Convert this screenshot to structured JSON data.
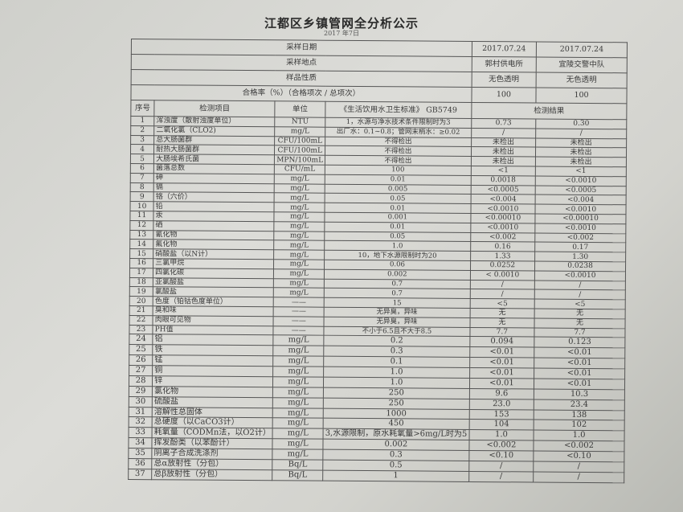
{
  "title": "江都区乡镇管网全分析公示",
  "subtitle": "2017 年7日",
  "meta": [
    {
      "label": "采样日期",
      "v1": "2017.07.24",
      "v2": "2017.07.24"
    },
    {
      "label": "采样地点",
      "v1": "郭村供电所",
      "v2": "宜陵交警中队"
    },
    {
      "label": "样品性质",
      "v1": "无色透明",
      "v2": "无色透明"
    },
    {
      "label": "合格率（%）（合格项次 / 总项次）",
      "v1": "100",
      "v2": "100"
    }
  ],
  "header": {
    "seq": "序号",
    "item": "检测项目",
    "unit": "单位",
    "standard": "《生活饮用水卫生标准》 GB5749",
    "result": "检测结果"
  },
  "rows": [
    [
      "1",
      "浑浊度（散射浊度单位）",
      "NTU",
      "1，水源与净水技术条件限制时为3",
      "0.73",
      "0.30"
    ],
    [
      "2",
      "二氧化氯（CLO2)",
      "mg/L",
      "出厂水：0.1~0.8；管网末梢水：≥0.02",
      "/",
      "/"
    ],
    [
      "3",
      "总大肠菌群",
      "CFU/100mL",
      "不得检出",
      "未检出",
      "未检出"
    ],
    [
      "4",
      "耐热大肠菌群",
      "CFU/100mL",
      "不得检出",
      "未检出",
      "未检出"
    ],
    [
      "5",
      "大肠埃希氏菌",
      "MPN/100mL",
      "不得检出",
      "未检出",
      "未检出"
    ],
    [
      "6",
      "菌落总数",
      "CFU/mL",
      "100",
      "<1",
      "<1"
    ],
    [
      "7",
      "砷",
      "mg/L",
      "0.01",
      "0.0018",
      "<0.0010"
    ],
    [
      "8",
      "镉",
      "mg/L",
      "0.005",
      "<0.0005",
      "<0.0005"
    ],
    [
      "9",
      "铬（六价）",
      "mg/L",
      "0.05",
      "<0.004",
      "<0.004"
    ],
    [
      "10",
      "铅",
      "mg/L",
      "0.01",
      "<0.0010",
      "<0.0010"
    ],
    [
      "11",
      "汞",
      "mg/L",
      "0.001",
      "<0.00010",
      "<0.00010"
    ],
    [
      "12",
      "硒",
      "mg/L",
      "0.01",
      "<0.0010",
      "<0.0010"
    ],
    [
      "13",
      "氰化物",
      "mg/L",
      "0.05",
      "<0.002",
      "<0.002"
    ],
    [
      "14",
      "氟化物",
      "mg/L",
      "1.0",
      "0.16",
      "0.17"
    ],
    [
      "15",
      "硝酸盐（以N计）",
      "mg/L",
      "10，地下水源限制时为20",
      "1.33",
      "1.30"
    ],
    [
      "16",
      "三氯甲烷",
      "mg/L",
      "0.06",
      "0.0252",
      "0.0238"
    ],
    [
      "17",
      "四氯化碳",
      "mg/L",
      "0.002",
      "< 0.0010",
      "<0.0010"
    ],
    [
      "18",
      "亚氯酸盐",
      "mg/L",
      "0.7",
      "/",
      "/"
    ],
    [
      "19",
      "氯酸盐",
      "mg/L",
      "0.7",
      "/",
      "/"
    ],
    [
      "20",
      "色度（铂钴色度单位）",
      "——",
      "15",
      "<5",
      "<5"
    ],
    [
      "21",
      "臭和味",
      "——",
      "无异臭，异味",
      "无",
      "无"
    ],
    [
      "22",
      "肉眼可见物",
      "——",
      "无异臭，异味",
      "无",
      "无"
    ],
    [
      "23",
      "PH值",
      "——",
      "不小于6.5且不大于8.5",
      "7.7",
      "7.7"
    ],
    [
      "24",
      "铝",
      "mg/L",
      "0.2",
      "0.094",
      "0.123"
    ],
    [
      "25",
      "铁",
      "mg/L",
      "0.3",
      "<0.01",
      "<0.01"
    ],
    [
      "26",
      "锰",
      "mg/L",
      "0.1",
      "<0.01",
      "<0.01"
    ],
    [
      "27",
      "铜",
      "mg/L",
      "1.0",
      "<0.01",
      "<0.01"
    ],
    [
      "28",
      "锌",
      "mg/L",
      "1.0",
      "<0.01",
      "<0.01"
    ],
    [
      "29",
      "氯化物",
      "mg/L",
      "250",
      "9.6",
      "10.3"
    ],
    [
      "30",
      "硫酸盐",
      "mg/L",
      "250",
      "23.0",
      "23.4"
    ],
    [
      "31",
      "溶解性总固体",
      "mg/L",
      "1000",
      "153",
      "138"
    ],
    [
      "32",
      "总硬度（以CaCO3计）",
      "mg/L",
      "450",
      "104",
      "102"
    ],
    [
      "33",
      "耗氧量（CODMn法，以O2计）",
      "mg/L",
      "3,水源限制，原水耗氧量>6mg/L时为5",
      "1.0",
      "1.0"
    ],
    [
      "34",
      "挥发酚类（以苯酚计）",
      "mg/L",
      "0.002",
      "<0.002",
      "<0.002"
    ],
    [
      "35",
      "阴离子合成洗涤剂",
      "mg/L",
      "0.3",
      "<0.10",
      "<0.10"
    ],
    [
      "36",
      "总α放射性（分包）",
      "Bq/L",
      "0.5",
      "/",
      "/"
    ],
    [
      "37",
      "总β放射性（分包）",
      "Bq/L",
      "1",
      "/",
      "/"
    ]
  ]
}
